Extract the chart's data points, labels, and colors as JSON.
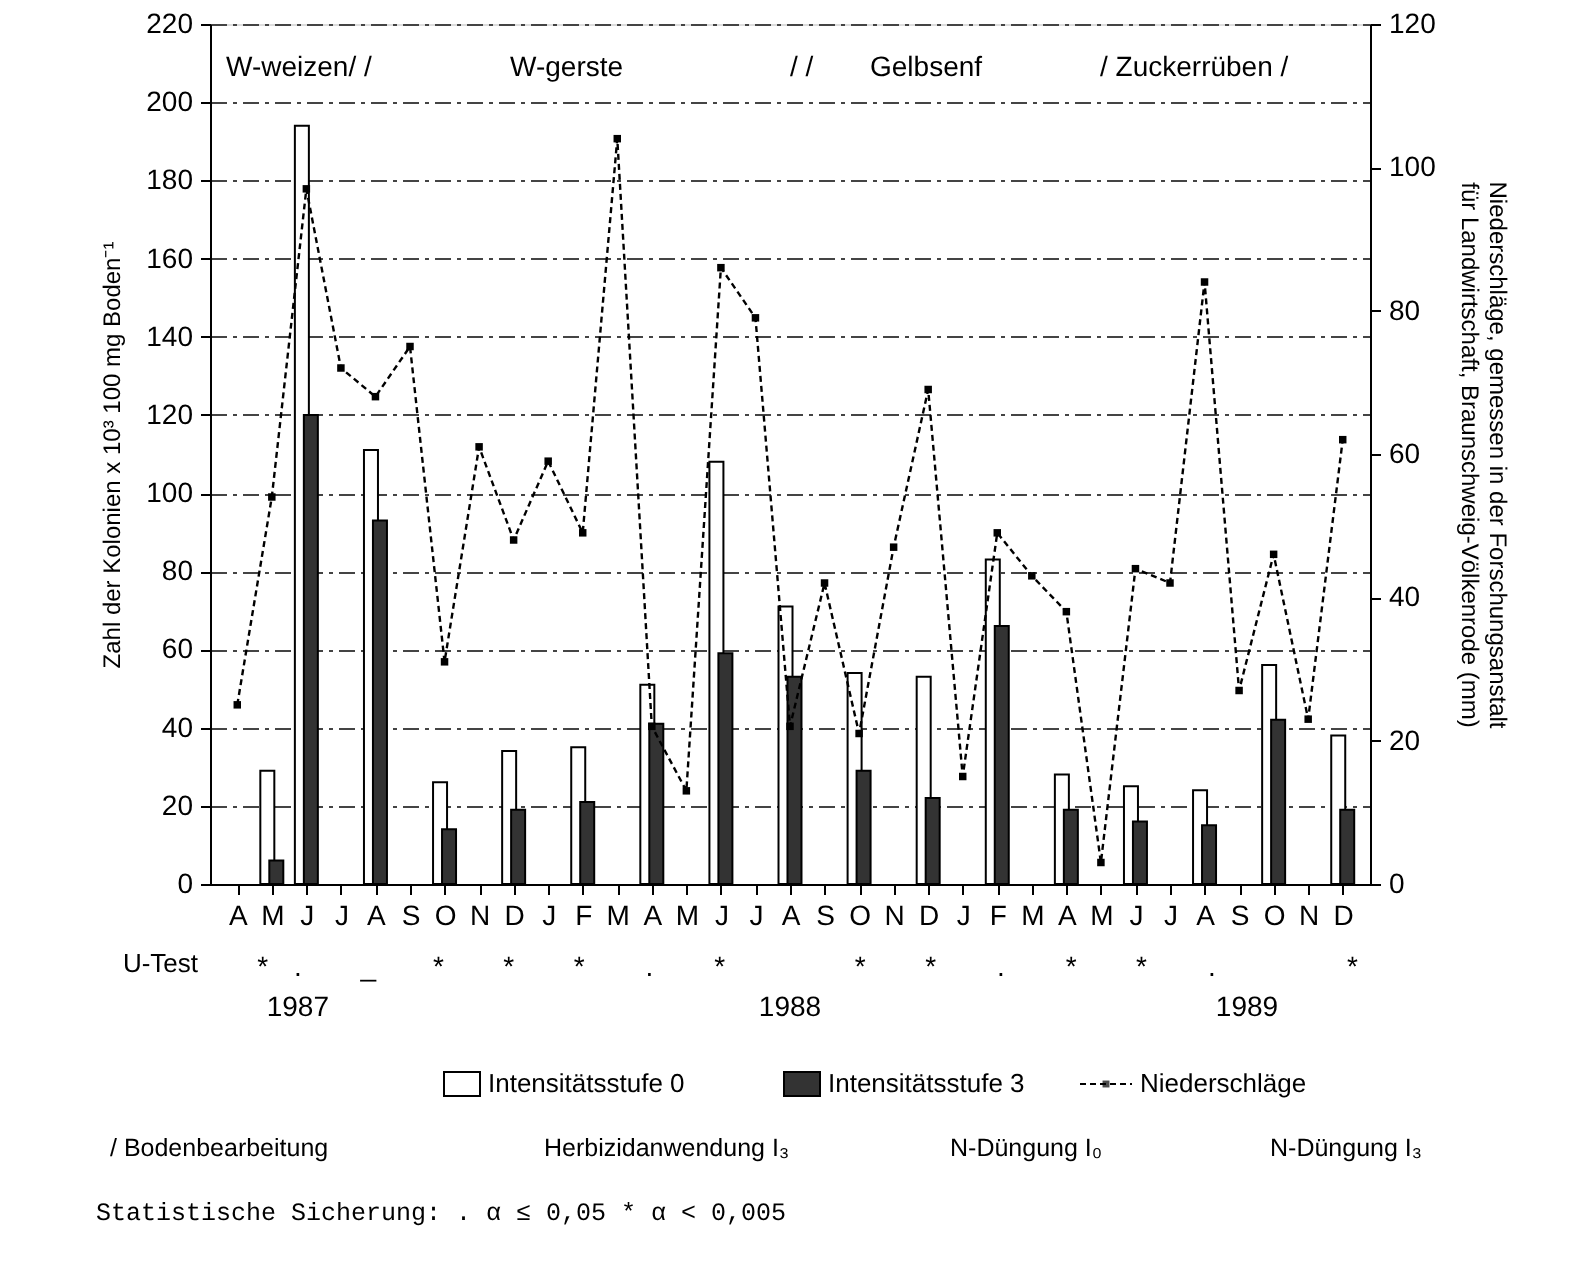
{
  "chart_data": {
    "type": "bar",
    "categories": [
      "A",
      "M",
      "J",
      "J",
      "A",
      "S",
      "O",
      "N",
      "D",
      "J",
      "F",
      "M",
      "A",
      "M",
      "J",
      "J",
      "A",
      "S",
      "O",
      "N",
      "D",
      "J",
      "F",
      "M",
      "A",
      "M",
      "J",
      "J",
      "A",
      "S",
      "O",
      "N",
      "D"
    ],
    "ylabel": "Zahl der Kolonien x 10³ 100 mg Boden⁻¹",
    "y2label": "Niederschläge, gemessen in der Forschungsanstalt für Landwirtschaft, Braunschweig-Völkenrode (mm)",
    "ylim": [
      0,
      220
    ],
    "yticks": [
      0,
      20,
      40,
      60,
      80,
      100,
      120,
      140,
      160,
      180,
      200,
      220
    ],
    "y2lim": [
      0,
      120
    ],
    "y2ticks": [
      0,
      20,
      40,
      60,
      80,
      100,
      120
    ],
    "grid": "y",
    "legend": "bottom",
    "marker": "square",
    "series": [
      {
        "name": "Intensitätsstufe 0",
        "color": "#ffffff",
        "values": [
          null,
          29,
          194,
          null,
          111,
          null,
          26,
          null,
          34,
          null,
          35,
          null,
          51,
          null,
          108,
          null,
          71,
          null,
          54,
          null,
          53,
          null,
          83,
          null,
          28,
          null,
          25,
          null,
          24,
          null,
          56,
          null,
          38
        ]
      },
      {
        "name": "Intensitätsstufe 3",
        "color": "#333333",
        "values": [
          null,
          6,
          120,
          null,
          93,
          null,
          14,
          null,
          19,
          null,
          21,
          null,
          41,
          null,
          59,
          null,
          53,
          null,
          29,
          null,
          22,
          null,
          66,
          null,
          19,
          null,
          16,
          null,
          15,
          null,
          42,
          null,
          19
        ]
      },
      {
        "name": "Niederschläge",
        "type": "line",
        "axis": "y2",
        "color": "#000000",
        "line_style": "dashed",
        "values": [
          25,
          54,
          97,
          72,
          68,
          75,
          31,
          61,
          48,
          59,
          49,
          104,
          22,
          13,
          86,
          79,
          22,
          42,
          21,
          47,
          69,
          15,
          49,
          43,
          38,
          3,
          44,
          42,
          84,
          27,
          46,
          23,
          62
        ]
      }
    ],
    "annotations": [
      "W-weizen/ /",
      "W-gerste",
      "/ /",
      "Gelbsenf",
      "/ Zuckerrüben /",
      "U-Test",
      "*",
      ".",
      "_",
      "*",
      "*",
      "*",
      ".",
      "*",
      "*",
      "*",
      ".",
      "*",
      "*",
      ".",
      "*",
      "1987",
      "1988",
      "1989",
      "/ Bodenbearbeitung",
      "Herbizidanwendung I₃",
      "N-Düngung I₀",
      "N-Düngung I₃",
      "Statistische Sicherung:  .  α ≤ 0,05     *  α < 0,005"
    ]
  }
}
